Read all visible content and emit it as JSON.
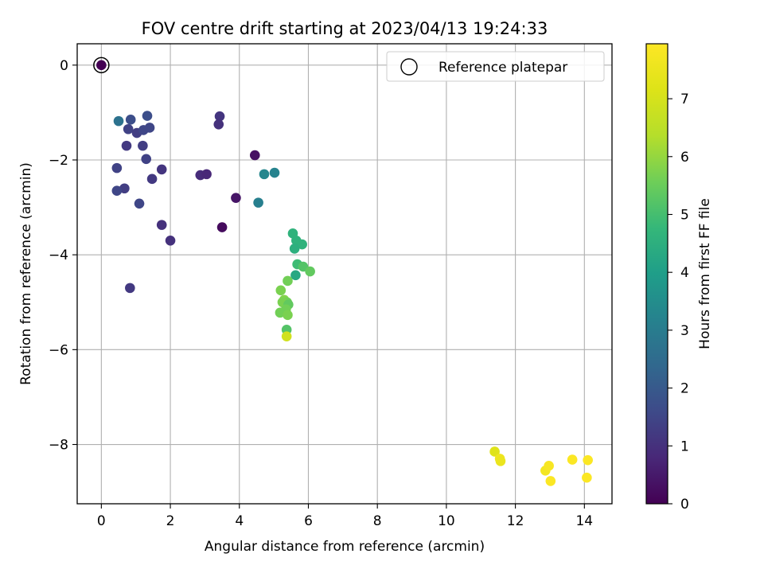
{
  "chart_data": {
    "type": "scatter",
    "title": "FOV centre drift starting at 2023/04/13 19:24:33",
    "xlabel": "Angular distance from reference (arcmin)",
    "ylabel": "Rotation from reference (arcmin)",
    "xlim": [
      -0.7,
      14.8
    ],
    "ylim": [
      -9.25,
      0.45
    ],
    "xticks": [
      0,
      2,
      4,
      6,
      8,
      10,
      12,
      14
    ],
    "yticks": [
      0,
      -2,
      -4,
      -6,
      -8
    ],
    "grid": true,
    "legend": {
      "position": "top-right",
      "entries": [
        "Reference platepar"
      ]
    },
    "colorbar": {
      "label": "Hours from first FF file",
      "range": [
        0,
        7.95
      ],
      "ticks": [
        0,
        1,
        2,
        3,
        4,
        5,
        6,
        7
      ],
      "colormap": "viridis"
    },
    "reference_point": {
      "x": 0,
      "y": 0
    },
    "points": [
      {
        "x": 0.0,
        "y": 0.0,
        "hours": 0.0
      },
      {
        "x": 0.5,
        "y": -1.18,
        "hours": 2.7
      },
      {
        "x": 0.85,
        "y": -1.15,
        "hours": 1.7
      },
      {
        "x": 1.33,
        "y": -1.07,
        "hours": 1.7
      },
      {
        "x": 0.78,
        "y": -1.35,
        "hours": 1.4
      },
      {
        "x": 1.03,
        "y": -1.43,
        "hours": 1.3
      },
      {
        "x": 1.22,
        "y": -1.37,
        "hours": 1.5
      },
      {
        "x": 1.4,
        "y": -1.32,
        "hours": 1.5
      },
      {
        "x": 0.73,
        "y": -1.7,
        "hours": 1.2
      },
      {
        "x": 1.2,
        "y": -1.7,
        "hours": 1.3
      },
      {
        "x": 1.3,
        "y": -1.98,
        "hours": 1.4
      },
      {
        "x": 0.45,
        "y": -2.17,
        "hours": 1.4
      },
      {
        "x": 1.75,
        "y": -2.2,
        "hours": 1.1
      },
      {
        "x": 1.47,
        "y": -2.4,
        "hours": 1.2
      },
      {
        "x": 0.67,
        "y": -2.6,
        "hours": 1.3
      },
      {
        "x": 0.45,
        "y": -2.65,
        "hours": 1.5
      },
      {
        "x": 1.1,
        "y": -2.92,
        "hours": 1.5
      },
      {
        "x": 1.75,
        "y": -3.37,
        "hours": 1.0
      },
      {
        "x": 2.0,
        "y": -3.7,
        "hours": 1.0
      },
      {
        "x": 0.83,
        "y": -4.7,
        "hours": 1.2
      },
      {
        "x": 3.43,
        "y": -1.08,
        "hours": 1.1
      },
      {
        "x": 3.4,
        "y": -1.25,
        "hours": 1.0
      },
      {
        "x": 2.87,
        "y": -2.32,
        "hours": 0.9
      },
      {
        "x": 3.05,
        "y": -2.3,
        "hours": 0.8
      },
      {
        "x": 3.9,
        "y": -2.8,
        "hours": 0.4
      },
      {
        "x": 3.5,
        "y": -3.42,
        "hours": 0.2
      },
      {
        "x": 4.45,
        "y": -1.9,
        "hours": 0.3
      },
      {
        "x": 4.72,
        "y": -2.3,
        "hours": 3.3
      },
      {
        "x": 5.02,
        "y": -2.27,
        "hours": 3.2
      },
      {
        "x": 4.55,
        "y": -2.9,
        "hours": 3.1
      },
      {
        "x": 5.55,
        "y": -3.55,
        "hours": 4.6
      },
      {
        "x": 5.65,
        "y": -3.7,
        "hours": 4.6
      },
      {
        "x": 5.82,
        "y": -3.78,
        "hours": 4.6
      },
      {
        "x": 5.6,
        "y": -3.87,
        "hours": 4.5
      },
      {
        "x": 5.68,
        "y": -4.2,
        "hours": 4.9
      },
      {
        "x": 5.85,
        "y": -4.25,
        "hours": 5.2
      },
      {
        "x": 6.05,
        "y": -4.35,
        "hours": 5.4
      },
      {
        "x": 5.63,
        "y": -4.43,
        "hours": 4.3
      },
      {
        "x": 5.4,
        "y": -4.55,
        "hours": 5.6
      },
      {
        "x": 5.2,
        "y": -4.75,
        "hours": 5.7
      },
      {
        "x": 5.3,
        "y": -4.95,
        "hours": 5.8
      },
      {
        "x": 5.38,
        "y": -5.0,
        "hours": 5.6
      },
      {
        "x": 5.25,
        "y": -5.0,
        "hours": 5.7
      },
      {
        "x": 5.42,
        "y": -5.05,
        "hours": 5.4
      },
      {
        "x": 5.35,
        "y": -5.15,
        "hours": 5.6
      },
      {
        "x": 5.18,
        "y": -5.22,
        "hours": 5.6
      },
      {
        "x": 5.4,
        "y": -5.27,
        "hours": 5.7
      },
      {
        "x": 5.37,
        "y": -5.58,
        "hours": 5.2
      },
      {
        "x": 5.37,
        "y": -5.72,
        "hours": 6.9
      },
      {
        "x": 11.4,
        "y": -8.15,
        "hours": 7.2
      },
      {
        "x": 11.55,
        "y": -8.3,
        "hours": 7.6
      },
      {
        "x": 11.57,
        "y": -8.35,
        "hours": 7.5
      },
      {
        "x": 12.87,
        "y": -8.55,
        "hours": 7.7
      },
      {
        "x": 12.97,
        "y": -8.45,
        "hours": 7.8
      },
      {
        "x": 13.02,
        "y": -8.77,
        "hours": 7.9
      },
      {
        "x": 13.65,
        "y": -8.32,
        "hours": 7.9
      },
      {
        "x": 14.1,
        "y": -8.33,
        "hours": 7.9
      },
      {
        "x": 14.07,
        "y": -8.7,
        "hours": 7.9
      }
    ]
  }
}
